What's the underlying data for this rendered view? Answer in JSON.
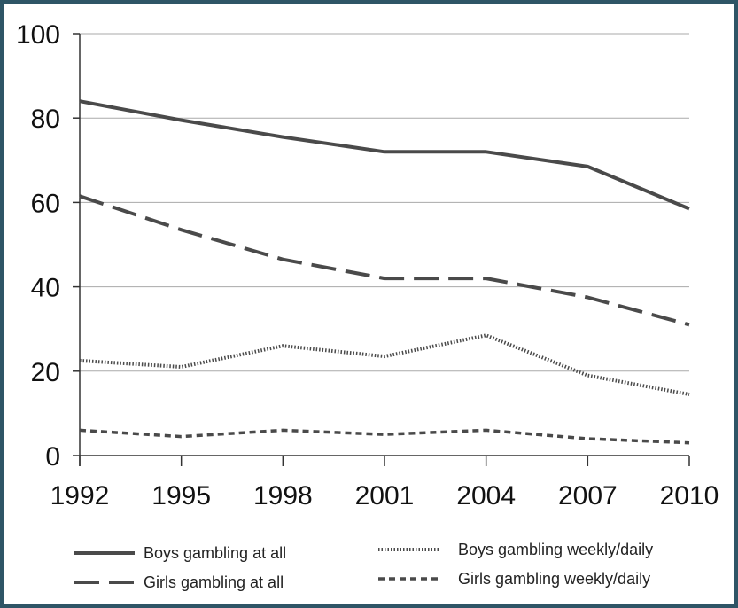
{
  "chart_data": {
    "type": "line",
    "title": "",
    "xlabel": "",
    "ylabel": "",
    "x": [
      "1992",
      "1995",
      "1998",
      "2001",
      "2004",
      "2007",
      "2010"
    ],
    "ylim": [
      0,
      100
    ],
    "yticks": [
      "0",
      "20",
      "40",
      "60",
      "80",
      "100"
    ],
    "grid": "horizontal",
    "legend_position": "bottom",
    "series": [
      {
        "name": "Boys gambling at all",
        "style": "solid",
        "values": [
          84,
          79.5,
          75.5,
          72,
          72,
          68.5,
          58.5
        ]
      },
      {
        "name": "Girls gambling at all",
        "style": "long-dash",
        "values": [
          61.5,
          53.5,
          46.5,
          42,
          42,
          37.5,
          31
        ]
      },
      {
        "name": "Boys gambling weekly/daily",
        "style": "dotted",
        "values": [
          22.5,
          21,
          26,
          23.5,
          28.5,
          19,
          14.5
        ]
      },
      {
        "name": "Girls gambling weekly/daily",
        "style": "short-dash",
        "values": [
          6,
          4.5,
          6,
          5,
          6,
          4,
          3
        ]
      }
    ],
    "colors": {
      "lines": "#4a4a4a",
      "grid": "#aaaaaa",
      "axis": "#333333"
    }
  }
}
